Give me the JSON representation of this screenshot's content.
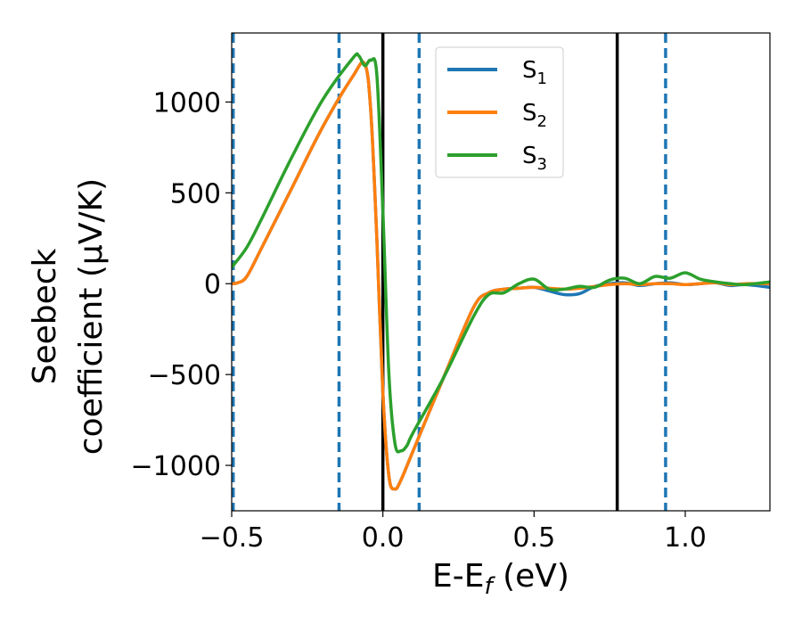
{
  "chart_data": {
    "type": "line",
    "xlabel": "E-E",
    "xlabel_sub": "f",
    "xlabel_unit": " (eV)",
    "ylabel_line1": "Seebeck",
    "ylabel_line2": "coefficient  (μV/K)",
    "xlim": [
      -0.5,
      1.28
    ],
    "ylim": [
      -1250,
      1380
    ],
    "x_ticks": [
      -0.5,
      0.0,
      0.5,
      1.0
    ],
    "x_tick_labels": [
      "−0.5",
      "0.0",
      "0.5",
      "1.0"
    ],
    "y_ticks": [
      -1000,
      -500,
      0,
      500,
      1000
    ],
    "y_tick_labels": [
      "−1000",
      "−500",
      "0",
      "500",
      "1000"
    ],
    "grid": false,
    "legend_position": "top-right",
    "vlines_solid": [
      0.0,
      0.775
    ],
    "vlines_dashed": [
      -0.495,
      -0.145,
      0.12,
      0.935
    ],
    "colors": {
      "S1": "#1f77b4",
      "S2": "#ff7f0e",
      "S3": "#2ca02c",
      "solid_vline": "#000000",
      "dashed_vline": "#1f77b4"
    },
    "series": [
      {
        "key": "S1",
        "name": "S",
        "sub": "1",
        "color": "#1f77b4",
        "x": [
          -0.5,
          -0.48,
          -0.45,
          -0.4,
          -0.3,
          -0.2,
          -0.1,
          -0.06,
          -0.04,
          -0.02,
          0.0,
          0.02,
          0.04,
          0.06,
          0.1,
          0.2,
          0.3,
          0.35,
          0.4,
          0.45,
          0.5,
          0.55,
          0.6,
          0.65,
          0.7,
          0.75,
          0.8,
          0.85,
          0.9,
          0.95,
          1.0,
          1.05,
          1.1,
          1.15,
          1.2,
          1.28
        ],
        "y": [
          0,
          5,
          40,
          200,
          530,
          860,
          1140,
          1210,
          950,
          250,
          -600,
          -1060,
          -1130,
          -1080,
          -920,
          -520,
          -130,
          -50,
          -30,
          -25,
          -20,
          -40,
          -60,
          -55,
          -15,
          0,
          5,
          -10,
          0,
          5,
          -5,
          0,
          5,
          -10,
          -5,
          -20
        ]
      },
      {
        "key": "S2",
        "name": "S",
        "sub": "2",
        "color": "#ff7f0e",
        "x": [
          -0.5,
          -0.48,
          -0.45,
          -0.4,
          -0.3,
          -0.2,
          -0.1,
          -0.06,
          -0.04,
          -0.02,
          0.0,
          0.02,
          0.04,
          0.06,
          0.1,
          0.2,
          0.3,
          0.35,
          0.4,
          0.45,
          0.5,
          0.55,
          0.6,
          0.65,
          0.7,
          0.75,
          0.8,
          0.85,
          0.9,
          0.95,
          1.0,
          1.05,
          1.1,
          1.15,
          1.2,
          1.28
        ],
        "y": [
          0,
          5,
          40,
          200,
          530,
          860,
          1140,
          1210,
          950,
          250,
          -600,
          -1060,
          -1130,
          -1080,
          -920,
          -520,
          -130,
          -50,
          -30,
          -25,
          -20,
          -25,
          -30,
          -25,
          -15,
          -5,
          0,
          -5,
          0,
          0,
          -5,
          0,
          5,
          -5,
          0,
          0
        ]
      },
      {
        "key": "S3",
        "name": "S",
        "sub": "3",
        "color": "#2ca02c",
        "x": [
          -0.5,
          -0.45,
          -0.4,
          -0.3,
          -0.2,
          -0.1,
          -0.08,
          -0.06,
          -0.04,
          -0.02,
          0.0,
          0.02,
          0.04,
          0.06,
          0.08,
          0.1,
          0.2,
          0.3,
          0.35,
          0.4,
          0.45,
          0.5,
          0.55,
          0.6,
          0.65,
          0.7,
          0.75,
          0.8,
          0.85,
          0.9,
          0.95,
          1.0,
          1.05,
          1.1,
          1.15,
          1.2,
          1.28
        ],
        "y": [
          90,
          200,
          360,
          700,
          1010,
          1240,
          1255,
          1200,
          1230,
          1150,
          400,
          -500,
          -880,
          -920,
          -890,
          -820,
          -520,
          -180,
          -60,
          -50,
          0,
          25,
          -30,
          -30,
          -15,
          -20,
          20,
          30,
          0,
          40,
          30,
          60,
          25,
          10,
          0,
          -5,
          10
        ]
      }
    ]
  }
}
